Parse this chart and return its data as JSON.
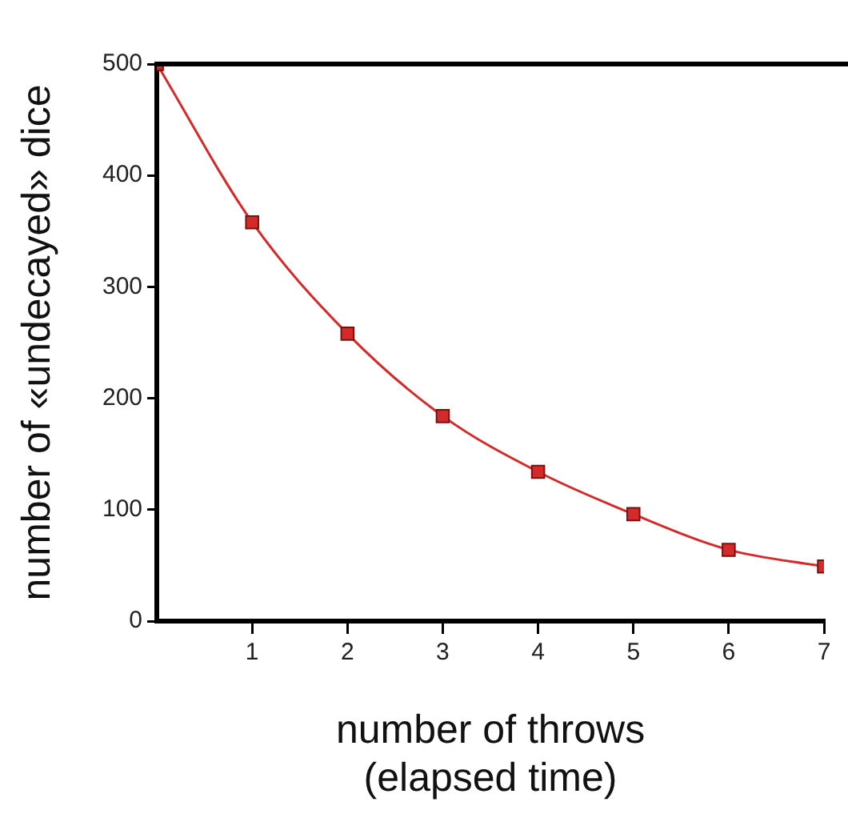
{
  "chart_data": {
    "type": "line",
    "xlabel": "number of throws\n(elapsed time)",
    "ylabel": "number of «undecayed» dice",
    "x": [
      0,
      1,
      2,
      3,
      4,
      5,
      6,
      7
    ],
    "series": [
      {
        "color": "#d42a2a",
        "values": [
          500,
          358,
          258,
          184,
          134,
          96,
          64,
          49
        ]
      }
    ],
    "xlim": [
      0,
      7
    ],
    "xticks": [
      1,
      2,
      3,
      4,
      5,
      6,
      7
    ],
    "ylim": [
      0,
      500
    ],
    "yticks": [
      0,
      100,
      200,
      300,
      400,
      500
    ],
    "grid": false,
    "legend": false,
    "marker": "square",
    "line_style": "solid"
  }
}
